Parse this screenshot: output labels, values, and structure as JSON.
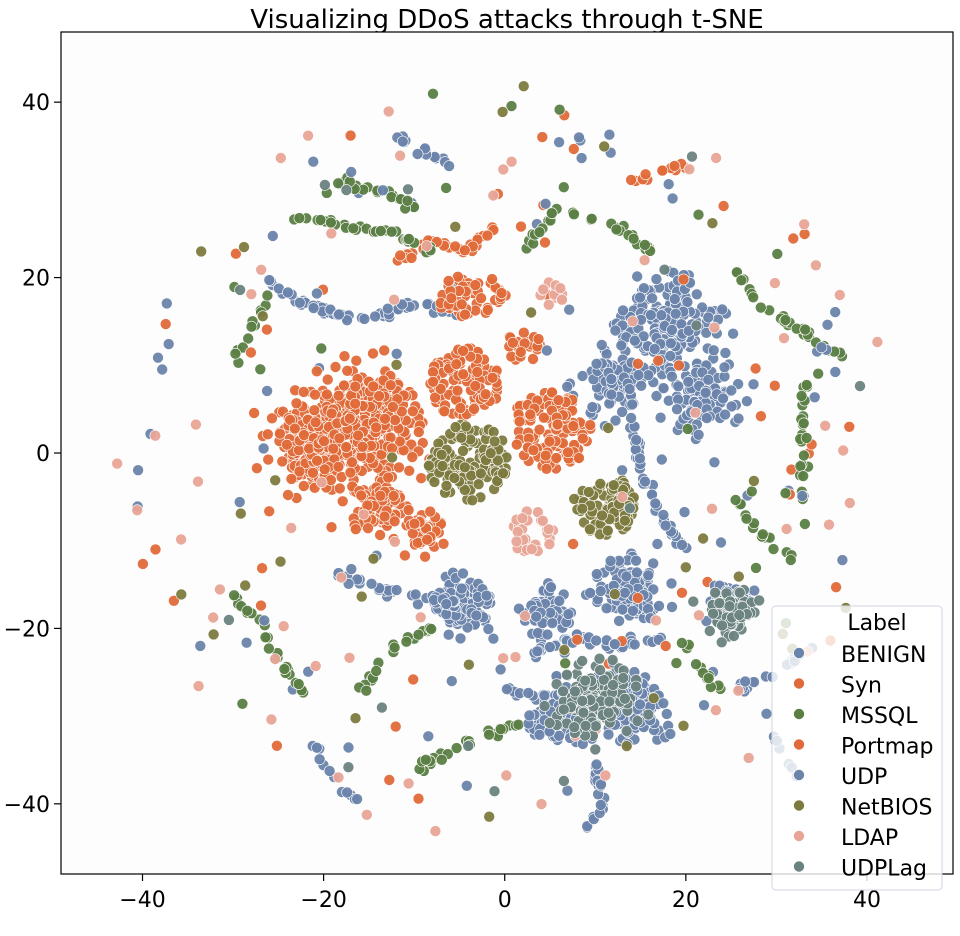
{
  "chart_data": {
    "type": "scatter",
    "title": "Visualizing DDoS attacks through t-SNE",
    "xlabel": "",
    "ylabel": "",
    "xlim": [
      -49,
      49.5
    ],
    "ylim": [
      -48,
      48
    ],
    "xticks": [
      -40,
      -20,
      0,
      20,
      40
    ],
    "yticks": [
      -40,
      -20,
      0,
      20,
      40
    ],
    "xtick_labels": [
      "−40",
      "−20",
      "0",
      "20",
      "40"
    ],
    "ytick_labels": [
      "−40",
      "−20",
      "0",
      "20",
      "40"
    ],
    "grid": false,
    "legend": {
      "title": "Label",
      "placement": "lower right"
    },
    "series": [
      {
        "name": "BENIGN",
        "color": "#6b84ab",
        "clusters": [
          {
            "shape": "blob",
            "cx": 18,
            "cy": 14,
            "r": 7,
            "n": 220
          },
          {
            "shape": "blob",
            "cx": 12,
            "cy": 8,
            "r": 5,
            "n": 80
          },
          {
            "shape": "blob",
            "cx": 22,
            "cy": 6,
            "r": 5,
            "n": 90
          },
          {
            "shape": "blob",
            "cx": -5,
            "cy": -17,
            "r": 4,
            "n": 140
          },
          {
            "shape": "blob",
            "cx": 14,
            "cy": -16,
            "r": 5,
            "n": 110
          },
          {
            "shape": "blob",
            "cx": 5,
            "cy": -18,
            "r": 4,
            "n": 60
          },
          {
            "shape": "curve",
            "pts": [
              [
                -27,
                20
              ],
              [
                -22,
                17
              ],
              [
                -16,
                15
              ],
              [
                -10,
                17
              ],
              [
                -5,
                16
              ]
            ],
            "n": 60
          },
          {
            "shape": "curve",
            "pts": [
              [
                -18,
                -14
              ],
              [
                -12,
                -16
              ],
              [
                -6,
                -17
              ],
              [
                -2,
                -19
              ]
            ],
            "n": 40
          },
          {
            "shape": "curve",
            "pts": [
              [
                14,
                4
              ],
              [
                15,
                -2
              ],
              [
                17,
                -7
              ],
              [
                20,
                -11
              ]
            ],
            "n": 45
          },
          {
            "shape": "curve",
            "pts": [
              [
                3,
                -23
              ],
              [
                8,
                -21
              ],
              [
                12,
                -22
              ],
              [
                18,
                -21
              ]
            ],
            "n": 40
          },
          {
            "shape": "curve",
            "pts": [
              [
                10,
                -35
              ],
              [
                11,
                -40
              ],
              [
                9,
                -43
              ]
            ],
            "n": 20
          },
          {
            "shape": "curve",
            "pts": [
              [
                -21,
                -33
              ],
              [
                -19,
                -37
              ],
              [
                -16,
                -40
              ]
            ],
            "n": 12
          },
          {
            "shape": "curve",
            "pts": [
              [
                26,
                -27
              ],
              [
                30,
                -25
              ],
              [
                34,
                -22
              ]
            ],
            "n": 18
          },
          {
            "shape": "curve",
            "pts": [
              [
                0,
                -27
              ],
              [
                4,
                -28
              ],
              [
                8,
                -33
              ]
            ],
            "n": 18
          },
          {
            "shape": "curve",
            "pts": [
              [
                -12,
                36
              ],
              [
                -8,
                34
              ],
              [
                -4,
                31
              ]
            ],
            "n": 15
          },
          {
            "shape": "curve",
            "pts": [
              [
                29,
                -30
              ],
              [
                30,
                -33
              ],
              [
                33,
                -38
              ]
            ],
            "n": 10
          },
          {
            "shape": "scatter",
            "cx": 0,
            "cy": 0,
            "rx": 42,
            "ry": 42,
            "n": 50
          }
        ]
      },
      {
        "name": "Syn",
        "color": "#e06a39",
        "clusters": [
          {
            "shape": "blob",
            "cx": -15,
            "cy": 4,
            "r": 7,
            "n": 300
          },
          {
            "shape": "blob",
            "cx": -21,
            "cy": 1,
            "r": 6,
            "n": 200
          },
          {
            "shape": "blob",
            "cx": -14,
            "cy": -6,
            "r": 4,
            "n": 90
          },
          {
            "shape": "blob",
            "cx": -9,
            "cy": -9,
            "r": 3,
            "n": 45
          },
          {
            "shape": "disc",
            "cx": -4.5,
            "cy": 8,
            "r": 4,
            "n": 110
          },
          {
            "shape": "disc",
            "cx": 5,
            "cy": 2.5,
            "r": 4.5,
            "n": 130
          },
          {
            "shape": "disc",
            "cx": 2,
            "cy": 12,
            "r": 2,
            "n": 25
          },
          {
            "shape": "disc",
            "cx": -5,
            "cy": 18,
            "r": 2.5,
            "n": 40
          },
          {
            "shape": "curve",
            "pts": [
              [
                -12,
                22
              ],
              [
                -8,
                24
              ],
              [
                -4,
                23
              ],
              [
                -1,
                26
              ]
            ],
            "n": 30
          },
          {
            "shape": "scatter",
            "cx": 0,
            "cy": 0,
            "rx": 42,
            "ry": 42,
            "n": 30
          }
        ]
      },
      {
        "name": "MSSQL",
        "color": "#5b7e45",
        "clusters": [
          {
            "shape": "curve",
            "pts": [
              [
                -24,
                27
              ],
              [
                -18,
                26
              ],
              [
                -12,
                25
              ],
              [
                -8,
                23
              ]
            ],
            "n": 30
          },
          {
            "shape": "curve",
            "pts": [
              [
                2,
                23
              ],
              [
                6,
                28
              ],
              [
                12,
                26
              ],
              [
                16,
                23
              ]
            ],
            "n": 30
          },
          {
            "shape": "curve",
            "pts": [
              [
                25,
                22
              ],
              [
                28,
                17
              ],
              [
                33,
                14
              ],
              [
                37,
                11
              ]
            ],
            "n": 30
          },
          {
            "shape": "curve",
            "pts": [
              [
                33,
                8
              ],
              [
                33,
                0
              ],
              [
                33,
                -8
              ]
            ],
            "n": 25
          },
          {
            "shape": "curve",
            "pts": [
              [
                -30,
                -16
              ],
              [
                -27,
                -20
              ],
              [
                -24,
                -25
              ],
              [
                -21,
                -28
              ]
            ],
            "n": 25
          },
          {
            "shape": "curve",
            "pts": [
              [
                -16,
                -27
              ],
              [
                -12,
                -22
              ],
              [
                -8,
                -20
              ]
            ],
            "n": 20
          },
          {
            "shape": "curve",
            "pts": [
              [
                -10,
                -36
              ],
              [
                -6,
                -34
              ],
              [
                -2,
                -32
              ],
              [
                2,
                -31
              ]
            ],
            "n": 25
          },
          {
            "shape": "curve",
            "pts": [
              [
                -22,
                29
              ],
              [
                -18,
                31
              ],
              [
                -14,
                30
              ],
              [
                -10,
                28
              ]
            ],
            "n": 20
          },
          {
            "shape": "curve",
            "pts": [
              [
                26,
                -6
              ],
              [
                28,
                -9
              ],
              [
                32,
                -12
              ]
            ],
            "n": 15
          },
          {
            "shape": "curve",
            "pts": [
              [
                20,
                -22
              ],
              [
                22,
                -25
              ],
              [
                24,
                -27
              ]
            ],
            "n": 12
          },
          {
            "shape": "curve",
            "pts": [
              [
                -30,
                10
              ],
              [
                -28,
                14
              ],
              [
                -26,
                18
              ]
            ],
            "n": 12
          },
          {
            "shape": "scatter",
            "cx": 0,
            "cy": 0,
            "rx": 42,
            "ry": 42,
            "n": 20
          }
        ]
      },
      {
        "name": "Portmap",
        "color": "#e06a39",
        "clusters": [
          {
            "shape": "blob",
            "cx": -18,
            "cy": 2,
            "r": 6,
            "n": 120
          },
          {
            "shape": "curve",
            "pts": [
              [
                -2,
                20
              ],
              [
                0,
                18
              ],
              [
                -2,
                16
              ]
            ],
            "n": 15
          },
          {
            "shape": "curve",
            "pts": [
              [
                14,
                31
              ],
              [
                17,
                32
              ],
              [
                20,
                33
              ]
            ],
            "n": 12
          },
          {
            "shape": "scatter",
            "cx": 0,
            "cy": 0,
            "rx": 42,
            "ry": 42,
            "n": 25
          }
        ]
      },
      {
        "name": "UDP",
        "color": "#6b84ab",
        "clusters": [
          {
            "shape": "blob",
            "cx": 14,
            "cy": -29,
            "r": 5,
            "n": 160
          },
          {
            "shape": "blob",
            "cx": 6,
            "cy": -30,
            "r": 4,
            "n": 90
          },
          {
            "shape": "blob",
            "cx": 25,
            "cy": -17,
            "r": 3,
            "n": 70
          },
          {
            "shape": "scatter",
            "cx": 0,
            "cy": 0,
            "rx": 42,
            "ry": 42,
            "n": 30
          }
        ]
      },
      {
        "name": "NetBIOS",
        "color": "#7d7a3f",
        "clusters": [
          {
            "shape": "disc",
            "cx": -4,
            "cy": -1,
            "r": 4.5,
            "n": 130
          },
          {
            "shape": "disc",
            "cx": 11,
            "cy": -6,
            "r": 3.5,
            "n": 90
          },
          {
            "shape": "scatter",
            "cx": 0,
            "cy": 0,
            "rx": 42,
            "ry": 42,
            "n": 35
          }
        ]
      },
      {
        "name": "LDAP",
        "color": "#e8a597",
        "clusters": [
          {
            "shape": "disc",
            "cx": 3,
            "cy": -9,
            "r": 2.5,
            "n": 30
          },
          {
            "shape": "disc",
            "cx": 5,
            "cy": 18,
            "r": 1.5,
            "n": 12
          },
          {
            "shape": "scatter",
            "cx": 0,
            "cy": 0,
            "rx": 44,
            "ry": 44,
            "n": 70
          }
        ]
      },
      {
        "name": "UDPLag",
        "color": "#6b8380",
        "clusters": [
          {
            "shape": "blob",
            "cx": 10,
            "cy": -28,
            "r": 5,
            "n": 150
          },
          {
            "shape": "blob",
            "cx": 25,
            "cy": -18,
            "r": 3,
            "n": 90
          },
          {
            "shape": "scatter",
            "cx": 0,
            "cy": 0,
            "rx": 40,
            "ry": 40,
            "n": 15
          }
        ]
      }
    ]
  }
}
